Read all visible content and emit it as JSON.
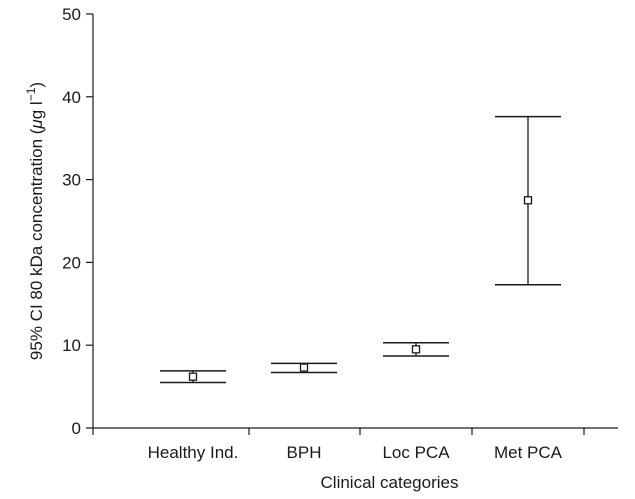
{
  "chart_data": {
    "type": "error_bar",
    "title": "",
    "xlabel": "Clinical categories",
    "ylabel": {
      "prefix": "95% CI 80 kDa concentration (",
      "mu": "μ",
      "unit": "g l",
      "sup": "−1",
      "suffix": ")"
    },
    "ylim": [
      0,
      50
    ],
    "yticks": [
      0,
      10,
      20,
      30,
      40,
      50
    ],
    "grid": false,
    "categories": [
      "Healthy Ind.",
      "BPH",
      "Loc PCA",
      "Met PCA"
    ],
    "series": [
      {
        "mean": [
          6.2,
          7.3,
          9.5,
          27.5
        ],
        "lower": [
          5.5,
          6.7,
          8.7,
          17.3
        ],
        "upper": [
          6.9,
          7.8,
          10.3,
          37.6
        ]
      }
    ],
    "colors": {
      "ink": "#1a1a1a",
      "background": "#ffffff"
    }
  }
}
